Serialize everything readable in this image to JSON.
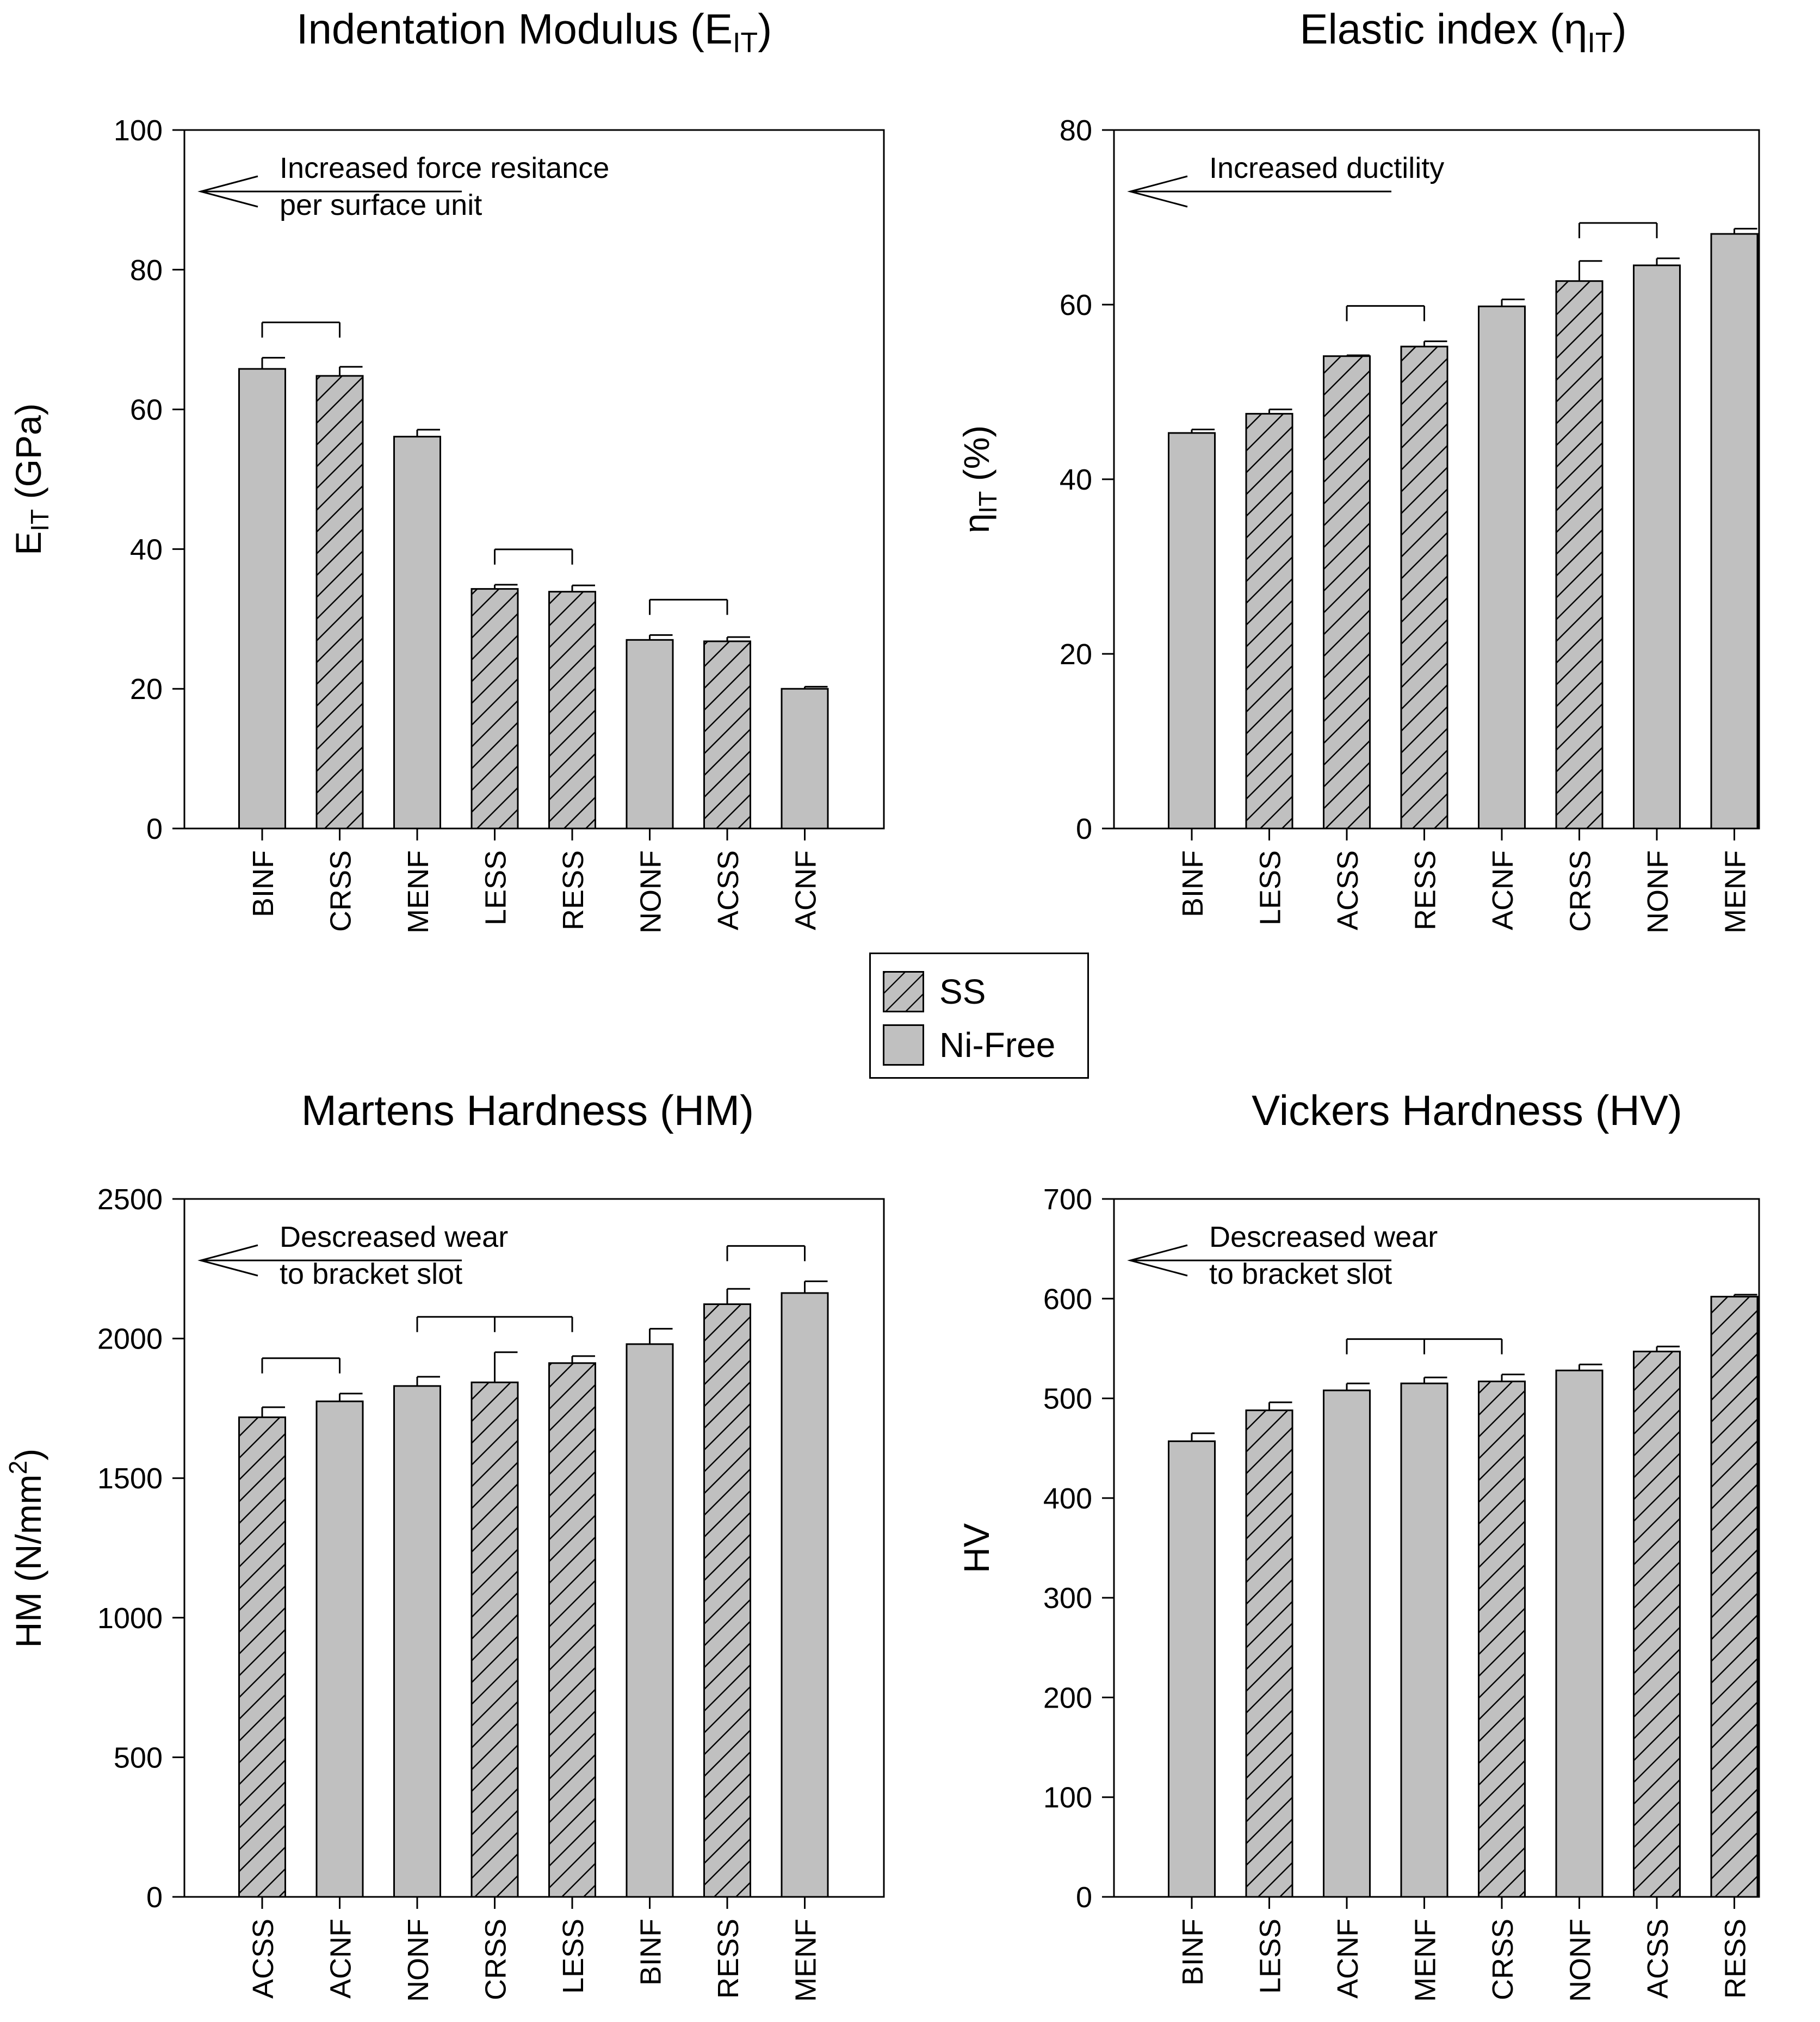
{
  "colors": {
    "bar_fill": "#c0c0c0",
    "stroke": "#000000",
    "background": "#ffffff"
  },
  "legend": {
    "items": [
      {
        "label": "SS",
        "pattern": "hatch"
      },
      {
        "label": "Ni-Free",
        "pattern": "solid"
      }
    ]
  },
  "chart_data": [
    {
      "type": "bar",
      "title": "Indentation Modulus (E",
      "title_sub": "IT",
      "title_end": ")",
      "ylabel": "E",
      "ylabel_sub": "IT",
      "ylabel_end": " (GPa)",
      "xlabel": "",
      "ylim": [
        0,
        100
      ],
      "yticks": [
        "0",
        "20",
        "40",
        "60",
        "80",
        "100"
      ],
      "categories": [
        "BINF",
        "CRSS",
        "MENF",
        "LESS",
        "RESS",
        "NONF",
        "ACSS",
        "ACNF"
      ],
      "values": [
        65.8,
        64.8,
        56.1,
        34.3,
        33.9,
        27.0,
        26.8,
        20.0
      ],
      "errors": [
        1.6,
        1.3,
        1.0,
        0.6,
        0.9,
        0.7,
        0.6,
        0.3
      ],
      "hatched": [
        false,
        true,
        false,
        true,
        true,
        false,
        true,
        false
      ],
      "brackets": [
        [
          0,
          1
        ],
        [
          3,
          4
        ],
        [
          5,
          6
        ]
      ],
      "annotation": {
        "lines": [
          "Increased force resitance",
          "per surface unit"
        ]
      }
    },
    {
      "type": "bar",
      "title": "Elastic index (η",
      "title_sub": "IT",
      "title_end": ")",
      "ylabel": "η",
      "ylabel_sub": "IT",
      "ylabel_end": " (%)",
      "xlabel": "",
      "ylim": [
        0,
        80
      ],
      "yticks": [
        "0",
        "20",
        "40",
        "60",
        "80"
      ],
      "categories": [
        "BINF",
        "LESS",
        "ACSS",
        "RESS",
        "ACNF",
        "CRSS",
        "NONF",
        "MENF"
      ],
      "values": [
        45.3,
        47.5,
        54.1,
        55.2,
        59.8,
        62.7,
        64.5,
        68.1
      ],
      "errors": [
        0.4,
        0.5,
        0.1,
        0.6,
        0.8,
        2.3,
        0.8,
        0.6
      ],
      "hatched": [
        false,
        true,
        true,
        true,
        false,
        true,
        false,
        false
      ],
      "brackets": [
        [
          2,
          3
        ],
        [
          5,
          6
        ]
      ],
      "annotation": {
        "lines": [
          "Increased ductility"
        ]
      }
    },
    {
      "type": "bar",
      "title": "Martens Hardness (HM)",
      "title_sub": "",
      "title_end": "",
      "ylabel": "HM (N/mm",
      "ylabel_sup": "2",
      "ylabel_end": ")",
      "xlabel": "",
      "ylim": [
        0,
        2500
      ],
      "yticks": [
        "0",
        "500",
        "1000",
        "1500",
        "2000",
        "2500"
      ],
      "categories": [
        "ACSS",
        "ACNF",
        "NONF",
        "CRSS",
        "LESS",
        "BINF",
        "RESS",
        "MENF"
      ],
      "values": [
        1718,
        1775,
        1830,
        1843,
        1912,
        1980,
        2123,
        2163
      ],
      "errors": [
        36,
        28,
        33,
        108,
        25,
        55,
        55,
        42
      ],
      "hatched": [
        true,
        false,
        false,
        true,
        true,
        false,
        true,
        false
      ],
      "brackets": [
        [
          0,
          1
        ],
        [
          2,
          3,
          4
        ],
        [
          6,
          7
        ]
      ],
      "annotation": {
        "lines": [
          "Descreased wear",
          "to bracket slot"
        ]
      }
    },
    {
      "type": "bar",
      "title": "Vickers Hardness (HV)",
      "title_sub": "",
      "title_end": "",
      "ylabel": "HV",
      "ylabel_sub": "",
      "ylabel_end": "",
      "xlabel": "",
      "ylim": [
        0,
        700
      ],
      "yticks": [
        "0",
        "100",
        "200",
        "300",
        "400",
        "500",
        "600",
        "700"
      ],
      "categories": [
        "BINF",
        "LESS",
        "ACNF",
        "MENF",
        "CRSS",
        "NONF",
        "ACSS",
        "RESS"
      ],
      "values": [
        457,
        488,
        508,
        515,
        517,
        528,
        547,
        602
      ],
      "errors": [
        8,
        8,
        7,
        6,
        7,
        6,
        5,
        2
      ],
      "hatched": [
        false,
        true,
        false,
        false,
        true,
        false,
        true,
        true
      ],
      "brackets": [
        [
          2,
          3,
          4
        ]
      ],
      "annotation": {
        "lines": [
          "Descreased wear",
          "to bracket slot"
        ]
      }
    }
  ]
}
